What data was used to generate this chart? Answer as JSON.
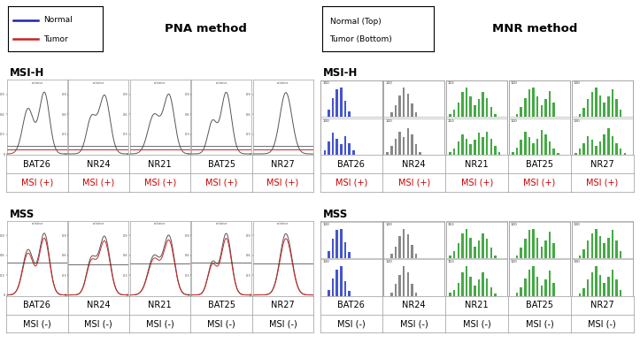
{
  "fig_width": 7.23,
  "fig_height": 3.97,
  "bg_color": "#ffffff",
  "pna_title": "PNA method",
  "mnr_title": "MNR method",
  "pna_legend_normal": "Normal",
  "pna_legend_tumor": "Tumor",
  "mnr_legend_line1": "Normal (Top)",
  "mnr_legend_line2": "Tumor (Bottom)",
  "normal_color": "#2222aa",
  "tumor_color": "#cc2222",
  "curve_color": "#555555",
  "msi_h_label": "MSI-H",
  "mss_label": "MSS",
  "markers": [
    "BAT26",
    "NR24",
    "NR21",
    "BAT25",
    "NR27"
  ],
  "msi_pos_label": "MSI (+)",
  "msi_neg_label": "MSI (-)",
  "msi_pos_color": "#cc0000",
  "msi_neg_color": "#000000",
  "mnr_color_bat26": "#4455cc",
  "mnr_color_nr24": "#888888",
  "mnr_color_green": "#44aa44",
  "border_color": "#999999",
  "thick_line_color": "#111111"
}
